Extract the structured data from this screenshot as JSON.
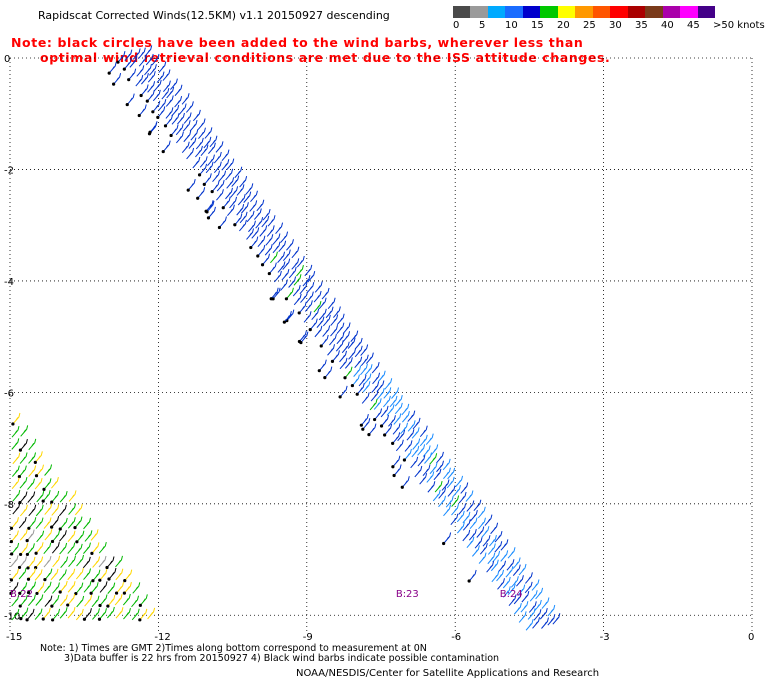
{
  "header": {
    "title": "Rapidscat Corrected Winds(12.5KM) v1.1 20150927 descending",
    "note_line1": "Note: black circles have been added to the wind barbs, wherever less than",
    "note_line2": "optimal wind retrieval conditions are met due to the ISS attitude changes."
  },
  "legend": {
    "colors": [
      "#4a4a4a",
      "#9a9a9a",
      "#00aaff",
      "#1a6cff",
      "#0000cc",
      "#00c800",
      "#ffff00",
      "#ff9900",
      "#ff5500",
      "#ff0000",
      "#aa0000",
      "#7a3a1a",
      "#aa00aa",
      "#ff00ff",
      "#440088"
    ],
    "labels": [
      "0",
      "5",
      "10",
      "15",
      "20",
      "25",
      "30",
      "35",
      "40",
      "45",
      ">50 knots"
    ]
  },
  "axes": {
    "x_ticks": [
      "-15",
      "-12",
      "-9",
      "-6",
      "-3",
      "0"
    ],
    "y_ticks": [
      "0",
      "-2",
      "-4",
      "-6",
      "-8",
      "-10"
    ]
  },
  "map": {
    "lon_range": [
      -15,
      0
    ],
    "lat_range": [
      -10.3,
      0
    ],
    "grid": "dotted",
    "swaths": [
      {
        "label": "B:22",
        "lon": -15.0,
        "lat": -9.6
      },
      {
        "label": "B:23",
        "lon": -7.2,
        "lat": -9.6
      },
      {
        "label": "B:24",
        "lon": -5.1,
        "lat": -9.6
      }
    ],
    "barb_colors": {
      "light": "#1a8cff",
      "medium": "#0033cc",
      "green": "#00b800",
      "yellow": "#ffd700",
      "contaminated": "#000000",
      "gray": "#9a9a9a"
    }
  },
  "footer": {
    "note1": "Note: 1) Times are GMT 2)Times along bottom correspond to measurement at 0N",
    "note2": "3)Data buffer is 22 hrs from 20150927 4) Black wind barbs indicate possible contamination",
    "credit": "NOAA/NESDIS/Center for Satellite Applications and Research"
  }
}
